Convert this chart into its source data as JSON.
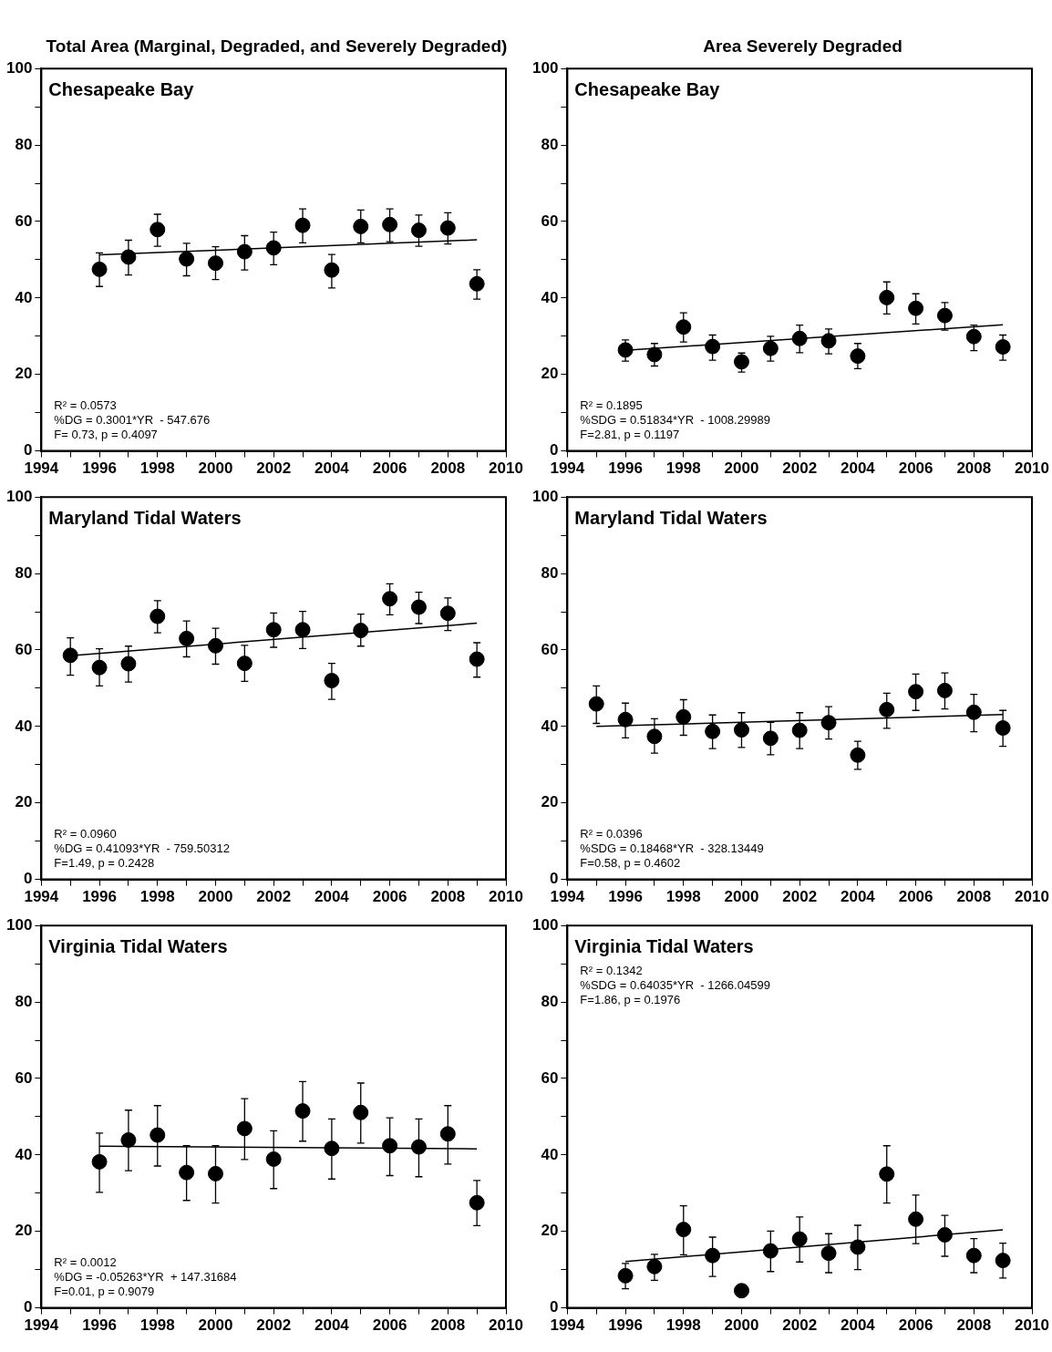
{
  "chart_data": [
    {
      "type": "scatter",
      "title": "Total Area (Marginal, Degraded, and Severely Degraded)",
      "xlim": [
        1994,
        2010
      ],
      "ylim": [
        0,
        100
      ],
      "xticks": [
        1994,
        {
          "value": 1995,
          "label": null
        },
        1996,
        {
          "value": 1997,
          "label": null
        },
        1998,
        {
          "value": 1999,
          "label": null
        },
        2000,
        {
          "value": 2001,
          "label": null
        },
        2002,
        {
          "value": 2003,
          "label": null
        },
        2004,
        {
          "value": 2005,
          "label": null
        },
        2006,
        {
          "value": 2007,
          "label": null
        },
        2008,
        {
          "value": 2009,
          "label": null
        },
        2010
      ],
      "yticks": [
        0,
        {
          "value": 10,
          "label": null
        },
        20,
        {
          "value": 30,
          "label": null
        },
        40,
        {
          "value": 50,
          "label": null
        },
        60,
        {
          "value": 70,
          "label": null
        },
        80,
        {
          "value": 90,
          "label": null
        },
        100
      ],
      "annotations": [
        "Chesapeake Bay",
        "R² = 0.0573",
        "%DG = 0.3001*YR  - 547.676",
        "F= 0.73, p = 0.4097"
      ],
      "series": [
        {
          "type": "scatter",
          "marker": "circle",
          "color": "#000000",
          "x": [
            1996,
            1997,
            1998,
            1999,
            2000,
            2001,
            2002,
            2003,
            2004,
            2005,
            2006,
            2007,
            2008,
            2009
          ],
          "values": [
            47.5,
            50.7,
            57.9,
            50.2,
            49.1,
            52.1,
            53.1,
            59.0,
            47.3,
            58.7,
            59.2,
            57.7,
            58.3,
            43.7
          ],
          "errors": [
            [
              43.0,
              51.8
            ],
            [
              46.0,
              55.1
            ],
            [
              53.5,
              61.9
            ],
            [
              45.8,
              54.3
            ],
            [
              44.8,
              53.4
            ],
            [
              47.3,
              56.3
            ],
            [
              48.7,
              57.2
            ],
            [
              54.4,
              63.3
            ],
            [
              42.6,
              51.4
            ],
            [
              54.4,
              63.0
            ],
            [
              54.7,
              63.3
            ],
            [
              53.5,
              61.7
            ],
            [
              54.1,
              62.3
            ],
            [
              39.7,
              47.4
            ]
          ]
        },
        {
          "type": "line",
          "color": "#000000",
          "x": [
            1996,
            2009
          ],
          "values": [
            51.3,
            55.2
          ]
        }
      ]
    },
    {
      "type": "scatter",
      "title": "Area Severely Degraded",
      "xlim": [
        1994,
        2010
      ],
      "ylim": [
        0,
        100
      ],
      "xticks": [
        1994,
        {
          "value": 1995,
          "label": null
        },
        1996,
        {
          "value": 1997,
          "label": null
        },
        1998,
        {
          "value": 1999,
          "label": null
        },
        2000,
        {
          "value": 2001,
          "label": null
        },
        2002,
        {
          "value": 2003,
          "label": null
        },
        2004,
        {
          "value": 2005,
          "label": null
        },
        2006,
        {
          "value": 2007,
          "label": null
        },
        2008,
        {
          "value": 2009,
          "label": null
        },
        2010
      ],
      "yticks": [
        0,
        {
          "value": 10,
          "label": null
        },
        20,
        {
          "value": 30,
          "label": null
        },
        40,
        {
          "value": 50,
          "label": null
        },
        60,
        {
          "value": 70,
          "label": null
        },
        80,
        {
          "value": 90,
          "label": null
        },
        100
      ],
      "annotations": [
        "Chesapeake Bay",
        "R² = 0.1895",
        "%SDG = 0.51834*YR  - 1008.29989",
        "F=2.81, p = 0.1197"
      ],
      "series": [
        {
          "type": "scatter",
          "marker": "circle",
          "color": "#000000",
          "x": [
            1996,
            1997,
            1998,
            1999,
            2000,
            2001,
            2002,
            2003,
            2004,
            2005,
            2006,
            2007,
            2008,
            2009
          ],
          "values": [
            26.4,
            25.2,
            32.4,
            27.3,
            23.3,
            26.8,
            29.4,
            28.8,
            24.8,
            40.1,
            37.3,
            35.4,
            29.9,
            27.2
          ],
          "errors": [
            [
              23.5,
              29.0
            ],
            [
              22.2,
              28.1
            ],
            [
              28.5,
              36.1
            ],
            [
              23.7,
              30.3
            ],
            [
              20.6,
              25.6
            ],
            [
              23.5,
              30.0
            ],
            [
              25.7,
              32.9
            ],
            [
              25.4,
              31.9
            ],
            [
              21.5,
              28.1
            ],
            [
              35.8,
              44.2
            ],
            [
              33.2,
              41.1
            ],
            [
              31.6,
              38.8
            ],
            [
              26.2,
              32.9
            ],
            [
              23.7,
              30.3
            ]
          ]
        },
        {
          "type": "line",
          "color": "#000000",
          "x": [
            1996,
            2009
          ],
          "values": [
            26.3,
            33.0
          ]
        }
      ]
    },
    {
      "type": "scatter",
      "xlim": [
        1994,
        2010
      ],
      "ylim": [
        0,
        100
      ],
      "xticks": [
        1994,
        {
          "value": 1995,
          "label": null
        },
        1996,
        {
          "value": 1997,
          "label": null
        },
        1998,
        {
          "value": 1999,
          "label": null
        },
        2000,
        {
          "value": 2001,
          "label": null
        },
        2002,
        {
          "value": 2003,
          "label": null
        },
        2004,
        {
          "value": 2005,
          "label": null
        },
        2006,
        {
          "value": 2007,
          "label": null
        },
        2008,
        {
          "value": 2009,
          "label": null
        },
        2010
      ],
      "yticks": [
        0,
        {
          "value": 10,
          "label": null
        },
        20,
        {
          "value": 30,
          "label": null
        },
        40,
        {
          "value": 50,
          "label": null
        },
        60,
        {
          "value": 70,
          "label": null
        },
        80,
        {
          "value": 90,
          "label": null
        },
        100
      ],
      "annotations": [
        "Maryland Tidal Waters",
        "R² = 0.0960",
        "%DG = 0.41093*YR  - 759.50312",
        "F=1.49, p = 0.2428"
      ],
      "series": [
        {
          "type": "scatter",
          "marker": "circle",
          "color": "#000000",
          "x": [
            1995,
            1996,
            1997,
            1998,
            1999,
            2000,
            2001,
            2002,
            2003,
            2004,
            2005,
            2006,
            2007,
            2008,
            2009
          ],
          "values": [
            58.6,
            55.4,
            56.4,
            68.8,
            63.0,
            61.1,
            56.5,
            65.3,
            65.3,
            52.0,
            65.1,
            73.4,
            71.2,
            69.6,
            57.6
          ],
          "errors": [
            [
              53.4,
              63.2
            ],
            [
              50.6,
              60.3
            ],
            [
              51.6,
              61.0
            ],
            [
              64.5,
              72.9
            ],
            [
              58.2,
              67.6
            ],
            [
              56.3,
              65.7
            ],
            [
              51.8,
              61.2
            ],
            [
              60.7,
              69.7
            ],
            [
              60.4,
              70.1
            ],
            [
              47.1,
              56.5
            ],
            [
              61.0,
              69.4
            ],
            [
              69.2,
              77.3
            ],
            [
              66.9,
              75.1
            ],
            [
              65.1,
              73.6
            ],
            [
              52.9,
              61.9
            ]
          ]
        },
        {
          "type": "line",
          "color": "#000000",
          "x": [
            1995,
            2009
          ],
          "values": [
            58.5,
            67.0
          ]
        }
      ]
    },
    {
      "type": "scatter",
      "xlim": [
        1994,
        2010
      ],
      "ylim": [
        0,
        100
      ],
      "xticks": [
        1994,
        {
          "value": 1995,
          "label": null
        },
        1996,
        {
          "value": 1997,
          "label": null
        },
        1998,
        {
          "value": 1999,
          "label": null
        },
        2000,
        {
          "value": 2001,
          "label": null
        },
        2002,
        {
          "value": 2003,
          "label": null
        },
        2004,
        {
          "value": 2005,
          "label": null
        },
        2006,
        {
          "value": 2007,
          "label": null
        },
        2008,
        {
          "value": 2009,
          "label": null
        },
        2010
      ],
      "yticks": [
        0,
        {
          "value": 10,
          "label": null
        },
        20,
        {
          "value": 30,
          "label": null
        },
        40,
        {
          "value": 50,
          "label": null
        },
        60,
        {
          "value": 70,
          "label": null
        },
        80,
        {
          "value": 90,
          "label": null
        },
        100
      ],
      "annotations": [
        "Maryland Tidal Waters",
        "R² = 0.0396",
        "%SDG = 0.18468*YR  - 328.13449",
        "F=0.58, p = 0.4602"
      ],
      "series": [
        {
          "type": "scatter",
          "marker": "circle",
          "color": "#000000",
          "x": [
            1995,
            1996,
            1997,
            1998,
            1999,
            2000,
            2001,
            2002,
            2003,
            2004,
            2005,
            2006,
            2007,
            2008,
            2009
          ],
          "values": [
            45.9,
            41.8,
            37.4,
            42.5,
            38.7,
            39.1,
            36.9,
            39.0,
            41.0,
            32.5,
            44.4,
            49.1,
            49.4,
            43.7,
            39.6
          ],
          "errors": [
            [
              40.8,
              50.6
            ],
            [
              37.0,
              46.1
            ],
            [
              33.0,
              42.0
            ],
            [
              37.7,
              47.0
            ],
            [
              34.2,
              43.0
            ],
            [
              34.5,
              43.6
            ],
            [
              32.6,
              41.1
            ],
            [
              34.2,
              43.6
            ],
            [
              36.7,
              45.2
            ],
            [
              28.8,
              36.1
            ],
            [
              39.5,
              48.7
            ],
            [
              44.2,
              53.7
            ],
            [
              44.6,
              54.0
            ],
            [
              38.6,
              48.4
            ],
            [
              34.8,
              44.2
            ]
          ]
        },
        {
          "type": "line",
          "color": "#000000",
          "x": [
            1995,
            2009
          ],
          "values": [
            40.0,
            43.1
          ]
        }
      ]
    },
    {
      "type": "scatter",
      "xlim": [
        1994,
        2010
      ],
      "ylim": [
        0,
        100
      ],
      "xticks": [
        1994,
        {
          "value": 1995,
          "label": null
        },
        1996,
        {
          "value": 1997,
          "label": null
        },
        1998,
        {
          "value": 1999,
          "label": null
        },
        2000,
        {
          "value": 2001,
          "label": null
        },
        2002,
        {
          "value": 2003,
          "label": null
        },
        2004,
        {
          "value": 2005,
          "label": null
        },
        2006,
        {
          "value": 2007,
          "label": null
        },
        2008,
        {
          "value": 2009,
          "label": null
        },
        2010
      ],
      "yticks": [
        0,
        {
          "value": 10,
          "label": null
        },
        20,
        {
          "value": 30,
          "label": null
        },
        40,
        {
          "value": 50,
          "label": null
        },
        60,
        {
          "value": 70,
          "label": null
        },
        80,
        {
          "value": 90,
          "label": null
        },
        100
      ],
      "annotations": [
        "Virginia Tidal Waters",
        "R² = 0.0012",
        "%DG = -0.05263*YR  + 147.31684",
        "F=0.01, p = 0.9079"
      ],
      "series": [
        {
          "type": "scatter",
          "marker": "circle",
          "color": "#000000",
          "x": [
            1996,
            1997,
            1998,
            1999,
            2000,
            2001,
            2002,
            2003,
            2004,
            2005,
            2006,
            2007,
            2008,
            2009
          ],
          "values": [
            38.2,
            43.9,
            45.2,
            35.4,
            35.1,
            46.9,
            38.9,
            51.5,
            41.7,
            51.1,
            42.4,
            42.1,
            45.5,
            27.5
          ],
          "errors": [
            [
              30.2,
              45.7
            ],
            [
              35.9,
              51.7
            ],
            [
              37.1,
              52.9
            ],
            [
              28.1,
              42.4
            ],
            [
              27.4,
              42.4
            ],
            [
              38.8,
              54.7
            ],
            [
              31.2,
              46.3
            ],
            [
              43.6,
              59.2
            ],
            [
              33.7,
              49.4
            ],
            [
              43.1,
              58.8
            ],
            [
              34.6,
              49.7
            ],
            [
              34.3,
              49.4
            ],
            [
              37.6,
              52.9
            ],
            [
              21.5,
              33.3
            ]
          ]
        },
        {
          "type": "line",
          "color": "#000000",
          "x": [
            1996,
            2009
          ],
          "values": [
            42.3,
            41.6
          ]
        }
      ]
    },
    {
      "type": "scatter",
      "xlim": [
        1994,
        2010
      ],
      "ylim": [
        0,
        100
      ],
      "xticks": [
        1994,
        {
          "value": 1995,
          "label": null
        },
        1996,
        {
          "value": 1997,
          "label": null
        },
        1998,
        {
          "value": 1999,
          "label": null
        },
        2000,
        {
          "value": 2001,
          "label": null
        },
        2002,
        {
          "value": 2003,
          "label": null
        },
        2004,
        {
          "value": 2005,
          "label": null
        },
        2006,
        {
          "value": 2007,
          "label": null
        },
        2008,
        {
          "value": 2009,
          "label": null
        },
        2010
      ],
      "yticks": [
        0,
        {
          "value": 10,
          "label": null
        },
        20,
        {
          "value": 30,
          "label": null
        },
        40,
        {
          "value": 50,
          "label": null
        },
        60,
        {
          "value": 70,
          "label": null
        },
        80,
        {
          "value": 90,
          "label": null
        },
        100
      ],
      "annotations": [
        "Virginia Tidal Waters",
        "R² = 0.1342",
        "%SDG = 0.64035*YR  - 1266.04599",
        "F=1.86, p = 0.1976"
      ],
      "series": [
        {
          "type": "scatter",
          "marker": "circle",
          "color": "#000000",
          "x": [
            1996,
            1997,
            1998,
            1999,
            2000,
            2001,
            2002,
            2003,
            2004,
            2005,
            2006,
            2007,
            2008,
            2009
          ],
          "values": [
            8.4,
            10.8,
            20.5,
            13.7,
            4.5,
            14.9,
            18.0,
            14.3,
            15.9,
            35.0,
            23.2,
            19.1,
            13.7,
            12.4
          ],
          "errors": [
            [
              5.0,
              11.6
            ],
            [
              7.2,
              14.0
            ],
            [
              13.9,
              26.7
            ],
            [
              8.2,
              18.5
            ],
            null,
            [
              9.5,
              20.1
            ],
            [
              12.0,
              23.8
            ],
            [
              9.2,
              19.4
            ],
            [
              10.0,
              21.6
            ],
            [
              27.4,
              42.4
            ],
            [
              16.8,
              29.5
            ],
            [
              13.5,
              24.2
            ],
            [
              9.2,
              18.1
            ],
            [
              7.8,
              16.9
            ]
          ]
        },
        {
          "type": "line",
          "color": "#000000",
          "x": [
            1996,
            2009
          ],
          "values": [
            12.1,
            20.4
          ]
        }
      ]
    }
  ]
}
